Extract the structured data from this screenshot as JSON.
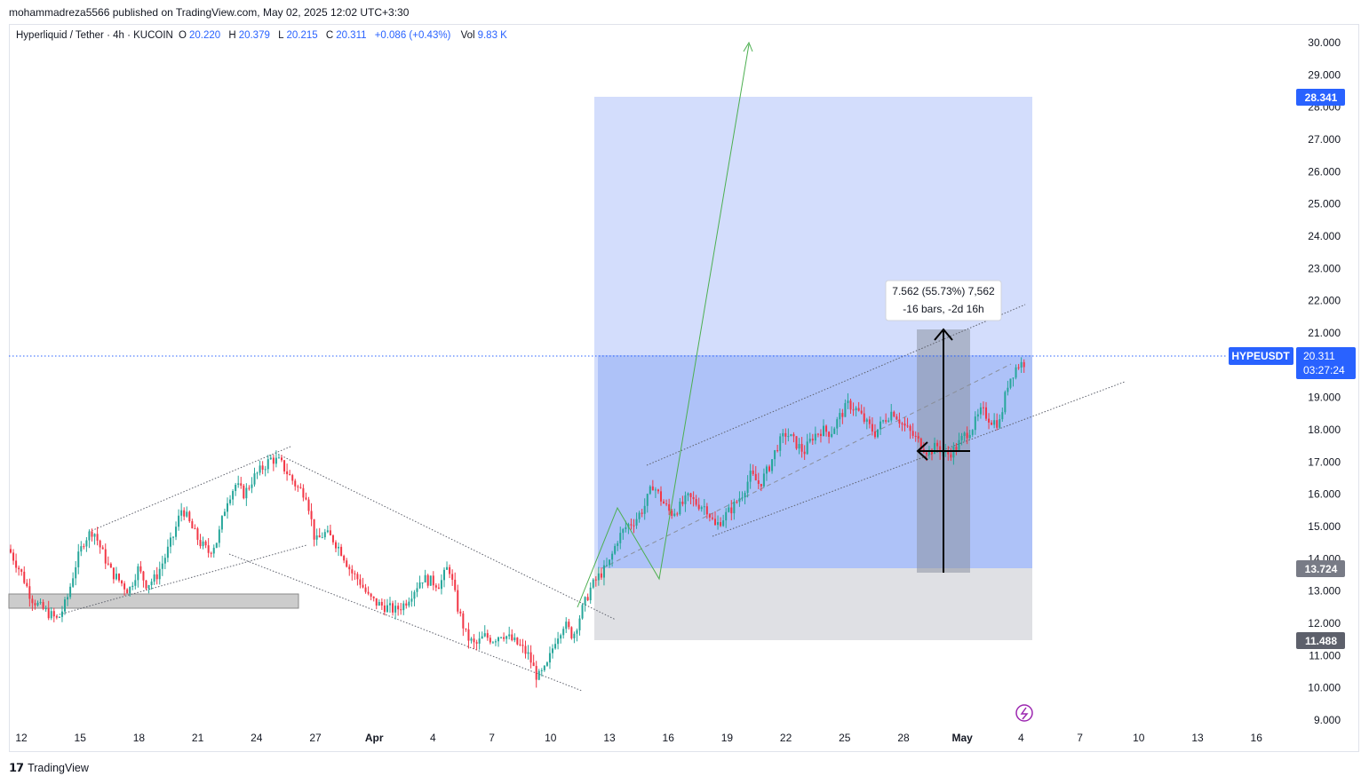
{
  "header": {
    "publisher": "mohammadreza5566 published on TradingView.com, May 02, 2025 12:02 UTC+3:30"
  },
  "legend": {
    "instrument": "Hyperliquid / Tether · 4h · KUCOIN",
    "open_label": "O",
    "open": "20.220",
    "high_label": "H",
    "high": "20.379",
    "low_label": "L",
    "low": "20.215",
    "close_label": "C",
    "close": "20.311",
    "change": "+0.086 (+0.43%)",
    "vol_label": "Vol",
    "vol": "9.83 K"
  },
  "price_tags": {
    "target": "28.341",
    "entry": "13.724",
    "stop": "11.488",
    "symbol": "HYPEUSDT",
    "last": "20.311",
    "countdown": "03:27:24"
  },
  "measure": {
    "line1": "7.562 (55.73%) 7,562",
    "line2": "-16 bars, -2d 16h"
  },
  "footer": {
    "brand": "TradingView"
  },
  "colors": {
    "up": "#26a69a",
    "down": "#f23645",
    "accent": "#2962ff",
    "target_zone": "#d3ddfc",
    "stop_zone": "#dfe0e4",
    "green_arrow": "#4caf50"
  },
  "chart_data": {
    "type": "candlestick",
    "symbol": "HYPEUSDT",
    "timeframe": "4h",
    "y_ticks": [
      "9.000",
      "10.000",
      "11.000",
      "12.000",
      "13.000",
      "14.000",
      "15.000",
      "16.000",
      "17.000",
      "18.000",
      "19.000",
      "20.000",
      "21.000",
      "22.000",
      "23.000",
      "24.000",
      "25.000",
      "26.000",
      "27.000",
      "28.000",
      "29.000",
      "30.000"
    ],
    "x_ticks": [
      "12",
      "15",
      "18",
      "21",
      "24",
      "27",
      "Apr",
      "4",
      "7",
      "10",
      "13",
      "16",
      "19",
      "22",
      "25",
      "28",
      "May",
      "4",
      "7",
      "10",
      "13",
      "16"
    ],
    "ylim": [
      9,
      30
    ],
    "price_path": [
      [
        0,
        14.3
      ],
      [
        15,
        13.5
      ],
      [
        25,
        12.8
      ],
      [
        35,
        12.5
      ],
      [
        45,
        12.3
      ],
      [
        55,
        12.1
      ],
      [
        65,
        12.7
      ],
      [
        75,
        13.8
      ],
      [
        85,
        14.6
      ],
      [
        95,
        14.9
      ],
      [
        105,
        14.2
      ],
      [
        115,
        13.6
      ],
      [
        125,
        13.3
      ],
      [
        135,
        13.0
      ],
      [
        145,
        13.7
      ],
      [
        155,
        13.2
      ],
      [
        165,
        13.4
      ],
      [
        175,
        14.0
      ],
      [
        185,
        14.7
      ],
      [
        195,
        15.6
      ],
      [
        205,
        15.0
      ],
      [
        215,
        14.5
      ],
      [
        225,
        14.2
      ],
      [
        235,
        14.6
      ],
      [
        245,
        15.8
      ],
      [
        255,
        16.3
      ],
      [
        265,
        16.0
      ],
      [
        275,
        16.5
      ],
      [
        285,
        16.8
      ],
      [
        295,
        17.1
      ],
      [
        305,
        17.0
      ],
      [
        315,
        16.6
      ],
      [
        325,
        16.2
      ],
      [
        335,
        16.0
      ],
      [
        345,
        14.5
      ],
      [
        355,
        14.8
      ],
      [
        365,
        14.6
      ],
      [
        375,
        14.2
      ],
      [
        385,
        13.6
      ],
      [
        395,
        13.3
      ],
      [
        405,
        12.8
      ],
      [
        415,
        12.6
      ],
      [
        425,
        12.5
      ],
      [
        435,
        12.4
      ],
      [
        445,
        12.6
      ],
      [
        455,
        13.0
      ],
      [
        465,
        13.4
      ],
      [
        475,
        13.3
      ],
      [
        485,
        13.2
      ],
      [
        495,
        13.8
      ],
      [
        505,
        12.5
      ],
      [
        515,
        11.6
      ],
      [
        525,
        11.3
      ],
      [
        535,
        11.6
      ],
      [
        545,
        11.5
      ],
      [
        555,
        11.7
      ],
      [
        565,
        11.5
      ],
      [
        575,
        11.3
      ],
      [
        585,
        11.0
      ],
      [
        595,
        10.3
      ],
      [
        605,
        10.6
      ],
      [
        615,
        11.5
      ],
      [
        625,
        12.0
      ],
      [
        635,
        11.6
      ],
      [
        645,
        12.4
      ],
      [
        655,
        13.1
      ],
      [
        665,
        13.5
      ],
      [
        675,
        13.8
      ],
      [
        685,
        14.6
      ],
      [
        695,
        15.0
      ],
      [
        705,
        15.2
      ],
      [
        715,
        15.6
      ],
      [
        725,
        16.3
      ],
      [
        735,
        15.8
      ],
      [
        745,
        15.4
      ],
      [
        755,
        15.6
      ],
      [
        765,
        15.9
      ],
      [
        775,
        15.7
      ],
      [
        785,
        15.6
      ],
      [
        795,
        15.0
      ],
      [
        805,
        15.3
      ],
      [
        815,
        15.6
      ],
      [
        825,
        16.0
      ],
      [
        835,
        16.6
      ],
      [
        845,
        16.3
      ],
      [
        855,
        16.8
      ],
      [
        865,
        17.5
      ],
      [
        875,
        17.9
      ],
      [
        885,
        17.6
      ],
      [
        895,
        17.3
      ],
      [
        905,
        17.8
      ],
      [
        915,
        18.0
      ],
      [
        925,
        17.9
      ],
      [
        935,
        18.4
      ],
      [
        945,
        18.8
      ],
      [
        955,
        18.6
      ],
      [
        965,
        18.2
      ],
      [
        975,
        17.9
      ],
      [
        985,
        18.3
      ],
      [
        995,
        18.6
      ],
      [
        1005,
        18.2
      ],
      [
        1015,
        17.9
      ],
      [
        1025,
        17.6
      ],
      [
        1035,
        17.3
      ],
      [
        1045,
        17.5
      ],
      [
        1055,
        17.2
      ],
      [
        1065,
        17.4
      ],
      [
        1075,
        17.8
      ],
      [
        1085,
        18.1
      ],
      [
        1095,
        18.6
      ],
      [
        1105,
        18.3
      ],
      [
        1115,
        18.2
      ],
      [
        1125,
        19.5
      ],
      [
        1135,
        20.0
      ],
      [
        1145,
        20.1
      ],
      [
        1155,
        20.31
      ]
    ]
  }
}
